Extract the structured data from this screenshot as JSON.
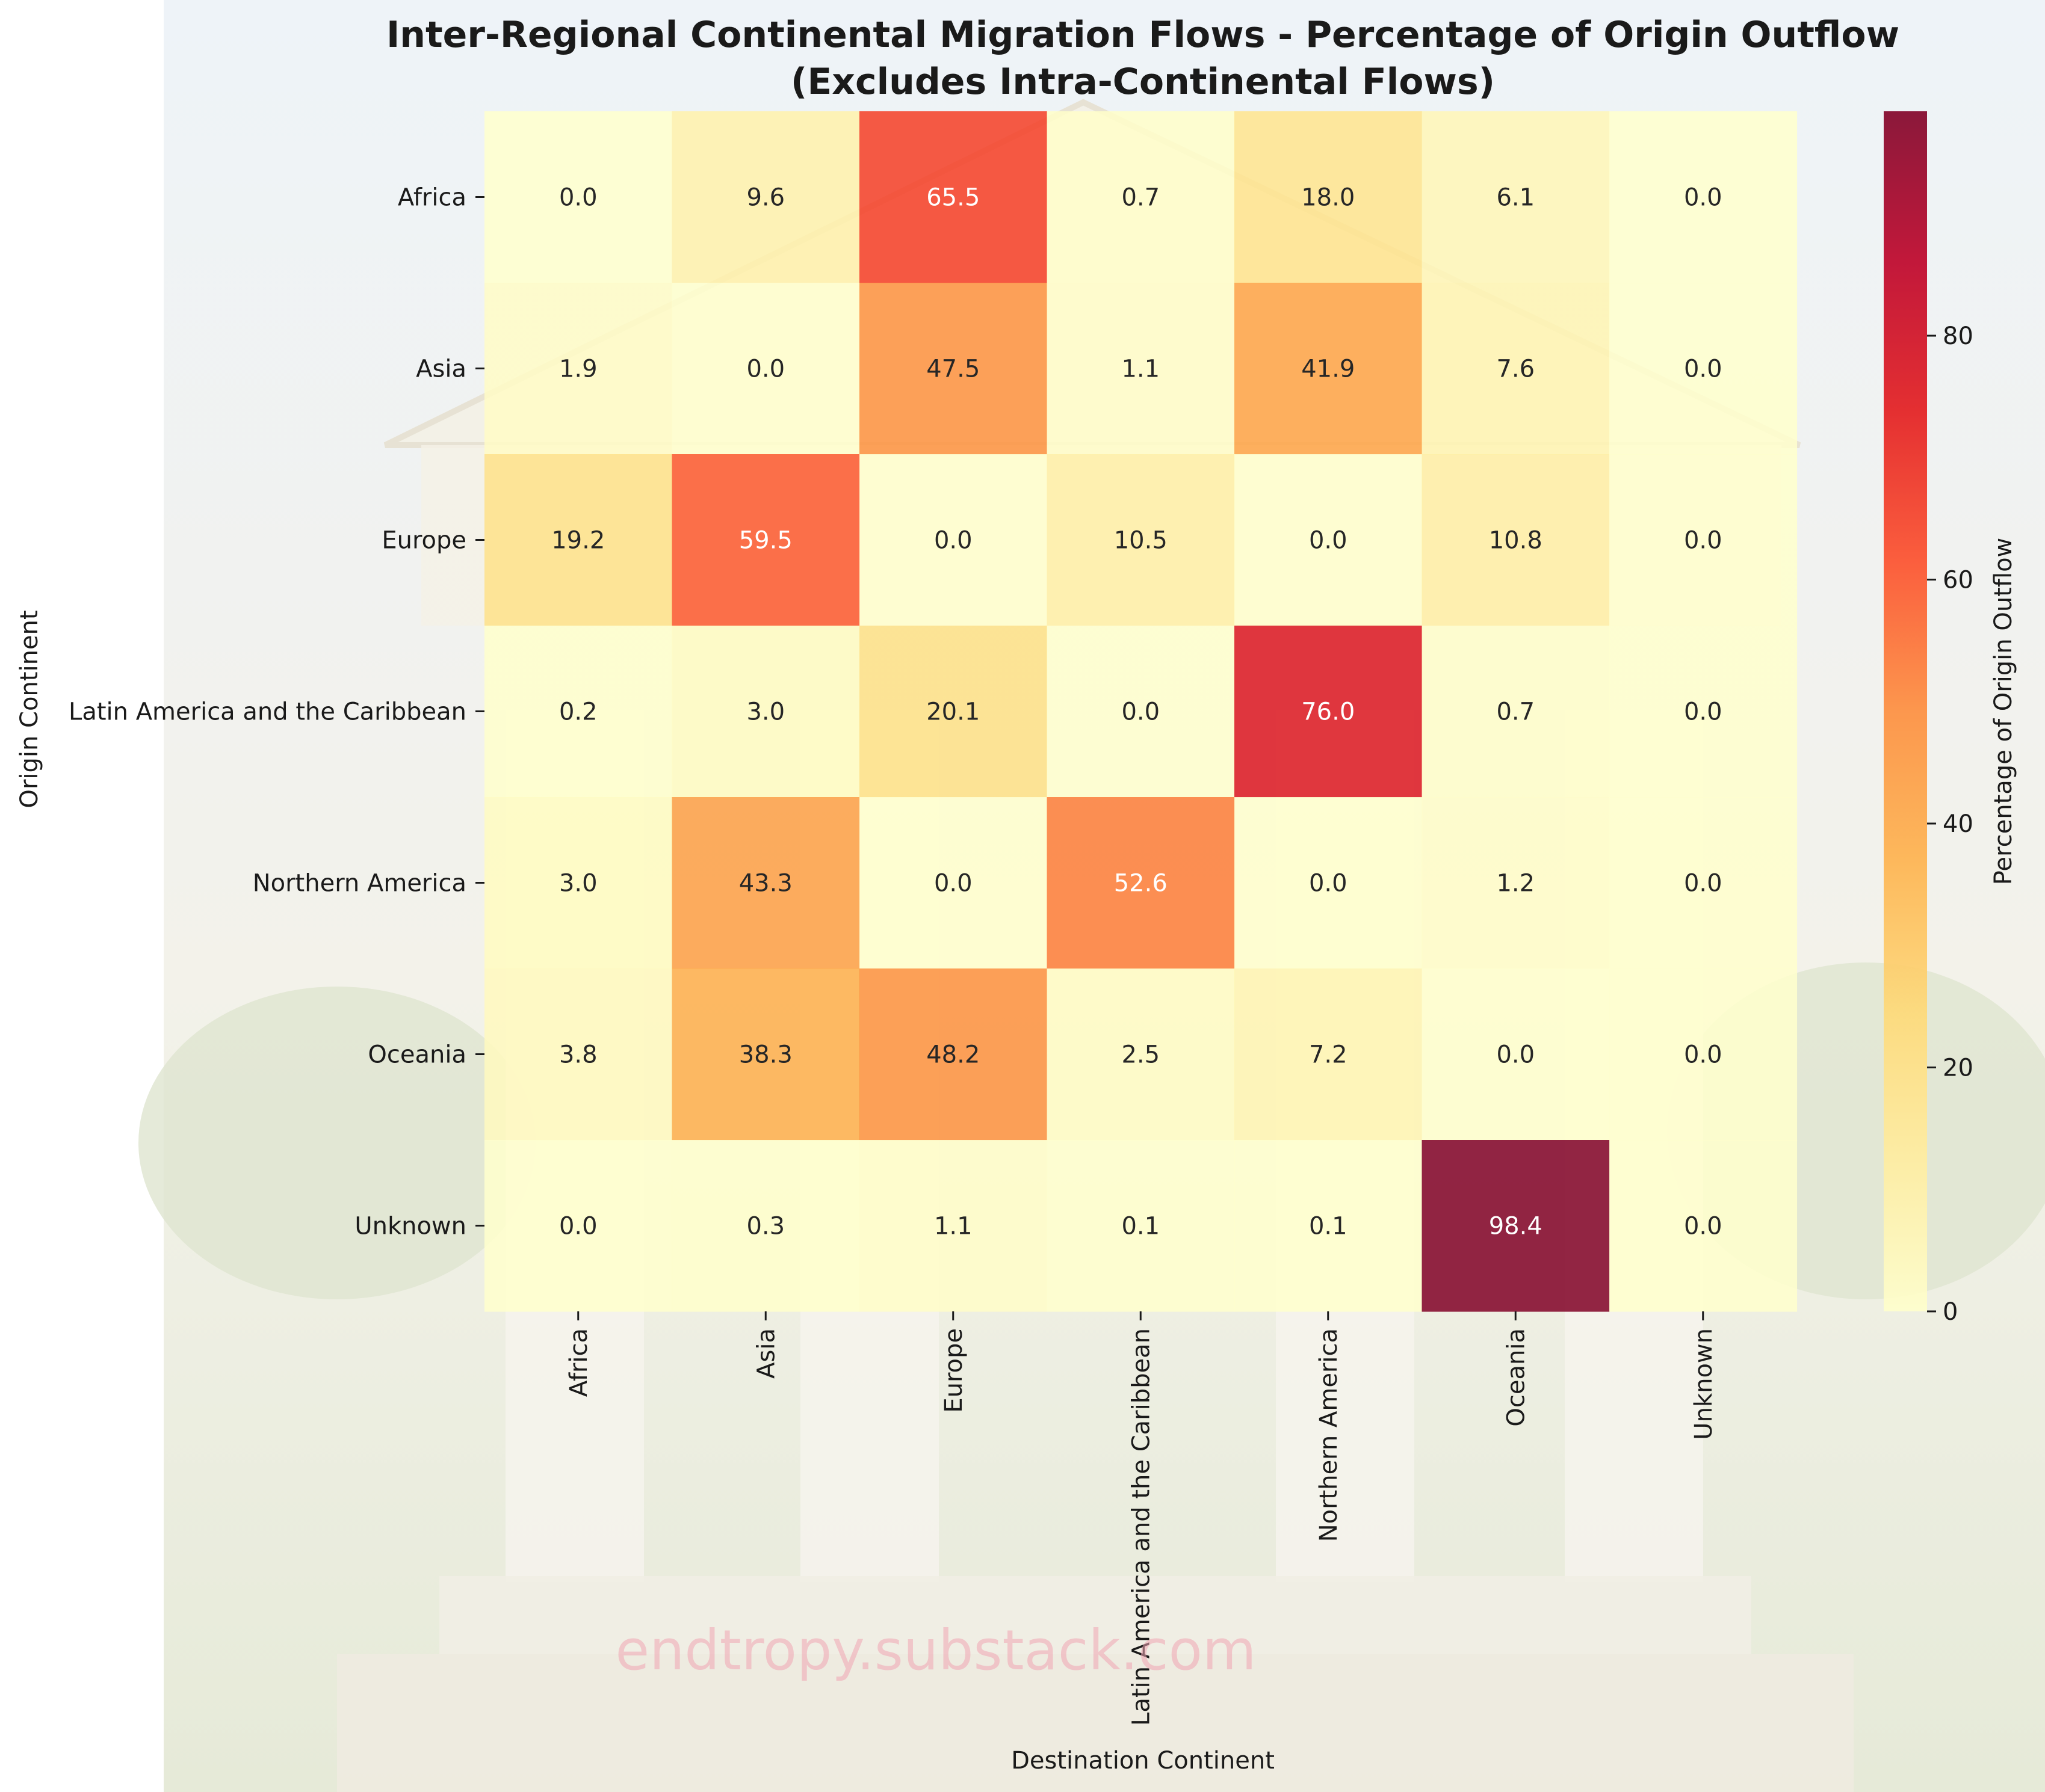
{
  "chart_data": {
    "type": "heatmap",
    "title_line1": "Inter-Regional Continental Migration Flows - Percentage of Origin Outflow",
    "title_line2": "(Excludes Intra-Continental Flows)",
    "xlabel": "Destination Continent",
    "ylabel": "Origin Continent",
    "colorbar_label": "Percentage of Origin Outflow",
    "x_categories": [
      "Africa",
      "Asia",
      "Europe",
      "Latin America and the Caribbean",
      "Northern America",
      "Oceania",
      "Unknown"
    ],
    "y_categories": [
      "Africa",
      "Asia",
      "Europe",
      "Latin America and the Caribbean",
      "Northern America",
      "Oceania",
      "Unknown"
    ],
    "values": [
      [
        0.0,
        9.6,
        65.5,
        0.7,
        18.0,
        6.1,
        0.0
      ],
      [
        1.9,
        0.0,
        47.5,
        1.1,
        41.9,
        7.6,
        0.0
      ],
      [
        19.2,
        59.5,
        0.0,
        10.5,
        0.0,
        10.8,
        0.0
      ],
      [
        0.2,
        3.0,
        20.1,
        0.0,
        76.0,
        0.7,
        0.0
      ],
      [
        3.0,
        43.3,
        0.0,
        52.6,
        0.0,
        1.2,
        0.0
      ],
      [
        3.8,
        38.3,
        48.2,
        2.5,
        7.2,
        0.0,
        0.0
      ],
      [
        0.0,
        0.3,
        1.1,
        0.1,
        0.1,
        98.4,
        0.0
      ]
    ],
    "color_range": [
      0,
      98.4
    ],
    "colorbar_ticks": [
      0,
      20,
      40,
      60,
      80
    ],
    "colormap": "YlOrRd",
    "colormap_stops": [
      "#ffffcc",
      "#ffeda0",
      "#fed976",
      "#feb24c",
      "#fd8d3c",
      "#fc4e2a",
      "#e31a1c",
      "#bd0026",
      "#800026"
    ],
    "watermark": "endtropy.substack.com"
  }
}
